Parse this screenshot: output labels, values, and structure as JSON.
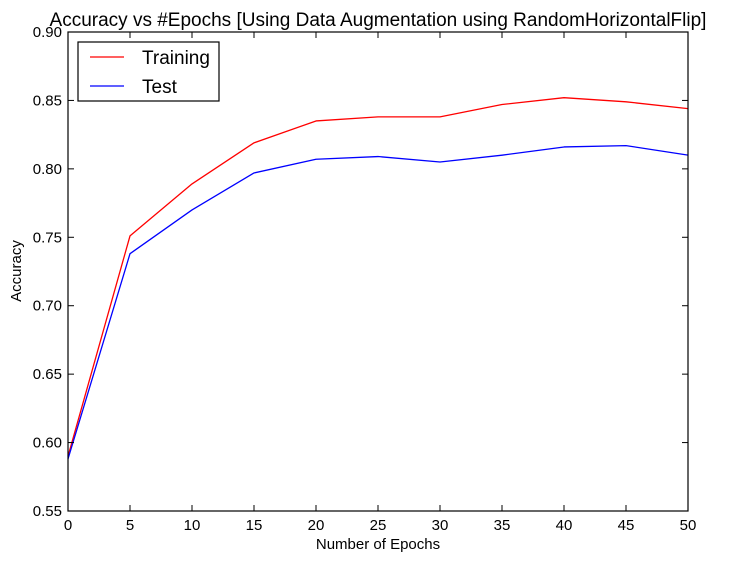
{
  "chart_data": {
    "type": "line",
    "title": "Accuracy vs #Epochs [Using Data Augmentation using RandomHorizontalFlip]",
    "xlabel": "Number of Epochs",
    "ylabel": "Accuracy",
    "xlim": [
      0,
      50
    ],
    "ylim": [
      0.55,
      0.9
    ],
    "xticks": [
      0,
      5,
      10,
      15,
      20,
      25,
      30,
      35,
      40,
      45,
      50
    ],
    "xtick_labels": [
      "0",
      "5",
      "10",
      "15",
      "20",
      "25",
      "30",
      "35",
      "40",
      "45",
      "50"
    ],
    "yticks": [
      0.55,
      0.6,
      0.65,
      0.7,
      0.75,
      0.8,
      0.85,
      0.9
    ],
    "ytick_labels": [
      "0.55",
      "0.60",
      "0.65",
      "0.70",
      "0.75",
      "0.80",
      "0.85",
      "0.90"
    ],
    "grid": false,
    "legend_position": "top-left",
    "x": [
      0,
      5,
      10,
      15,
      20,
      25,
      30,
      35,
      40,
      45,
      50
    ],
    "series": [
      {
        "name": "Training",
        "color": "#ff0000",
        "values": [
          0.59,
          0.751,
          0.789,
          0.819,
          0.835,
          0.838,
          0.838,
          0.847,
          0.852,
          0.849,
          0.844
        ]
      },
      {
        "name": "Test",
        "color": "#0000ff",
        "values": [
          0.588,
          0.738,
          0.77,
          0.797,
          0.807,
          0.809,
          0.805,
          0.81,
          0.816,
          0.817,
          0.81
        ]
      }
    ]
  }
}
